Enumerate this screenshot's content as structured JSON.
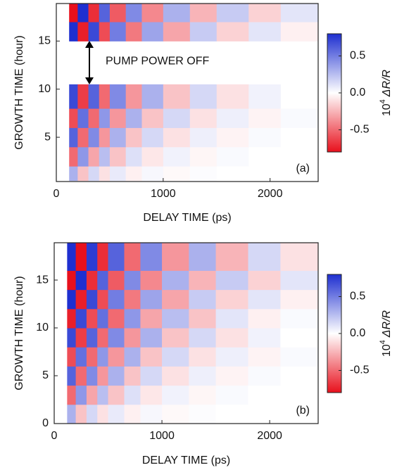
{
  "chart_data": [
    {
      "type": "heatmap",
      "xlabel": "DELAY TIME (ps)",
      "ylabel": "GROWTH TIME (hour)",
      "xlim": [
        0,
        2450
      ],
      "ylim": [
        0.4,
        18.9
      ],
      "xticks": [
        0,
        1000,
        2000
      ],
      "yticks": [
        5,
        10,
        15
      ],
      "x_edges": [
        120,
        200,
        300,
        400,
        500,
        650,
        800,
        1000,
        1250,
        1500,
        1800,
        2100,
        2450
      ],
      "y_edges": [
        0.5,
        2,
        4,
        6,
        8,
        10.5,
        15,
        17,
        18.9
      ],
      "z": [
        [
          0.3,
          -0.2,
          0.15,
          -0.1,
          0.08,
          -0.05,
          0.03,
          -0.02,
          0.01,
          0,
          0,
          0
        ],
        [
          -0.5,
          0.4,
          -0.3,
          0.25,
          -0.2,
          0.12,
          -0.08,
          0.05,
          -0.03,
          0.02,
          0,
          0
        ],
        [
          0.6,
          -0.5,
          0.45,
          -0.35,
          0.3,
          -0.2,
          0.15,
          -0.1,
          0.06,
          -0.04,
          0.02,
          0
        ],
        [
          -0.6,
          0.55,
          -0.5,
          0.4,
          -0.35,
          0.3,
          -0.2,
          0.15,
          -0.1,
          0.06,
          -0.04,
          0.02
        ],
        [
          0.7,
          -0.65,
          0.6,
          -0.5,
          0.45,
          -0.35,
          0.3,
          -0.2,
          0.15,
          -0.1,
          0.05,
          0
        ],
        [
          null,
          null,
          null,
          null,
          null,
          null,
          null,
          null,
          null,
          null,
          null,
          null
        ],
        [
          0.8,
          -0.75,
          0.7,
          -0.6,
          0.5,
          -0.45,
          0.35,
          -0.3,
          0.2,
          -0.15,
          0.1,
          -0.05
        ],
        [
          -0.8,
          0.8,
          -0.7,
          0.6,
          -0.55,
          0.45,
          -0.4,
          0.3,
          -0.25,
          0.2,
          -0.15,
          0.1
        ]
      ],
      "colormap": [
        "#e8101c",
        "#ffffff",
        "#1e2fd0"
      ],
      "clim": [
        -0.8,
        0.8
      ],
      "cticks": [
        0.5,
        {
          "value": 0,
          "label": "0.0"
        },
        -0.5
      ],
      "colorbar_label": {
        "base": "10",
        "exponent": "4",
        "quantity": "ΔR/R"
      },
      "annotation": "PUMP POWER OFF",
      "panel_label": "(a)"
    },
    {
      "type": "heatmap",
      "xlabel": "DELAY TIME (ps)",
      "ylabel": "GROWTH TIME (hour)",
      "xlim": [
        0,
        2450
      ],
      "ylim": [
        0,
        18.9
      ],
      "xticks": [
        0,
        1000,
        2000
      ],
      "yticks": [
        0,
        5,
        10,
        15
      ],
      "x_edges": [
        120,
        200,
        300,
        400,
        500,
        650,
        800,
        1000,
        1250,
        1500,
        1800,
        2100,
        2450
      ],
      "y_edges": [
        0,
        2,
        4,
        6,
        8,
        10,
        12,
        14,
        16,
        18.9
      ],
      "z": [
        [
          0.3,
          -0.2,
          0.15,
          -0.1,
          0.08,
          -0.05,
          0.03,
          -0.02,
          0.01,
          0,
          0,
          0
        ],
        [
          -0.5,
          0.4,
          -0.3,
          0.25,
          -0.2,
          0.12,
          -0.08,
          0.05,
          -0.03,
          0.02,
          0,
          0
        ],
        [
          0.6,
          -0.5,
          0.45,
          -0.35,
          0.3,
          -0.2,
          0.15,
          -0.1,
          0.06,
          -0.04,
          0.02,
          0
        ],
        [
          -0.6,
          0.55,
          -0.5,
          0.4,
          -0.35,
          0.3,
          -0.2,
          0.15,
          -0.1,
          0.06,
          -0.04,
          0.02
        ],
        [
          0.7,
          -0.65,
          0.6,
          -0.5,
          0.45,
          -0.35,
          0.3,
          -0.2,
          0.15,
          -0.1,
          0.05,
          0
        ],
        [
          -0.75,
          0.7,
          -0.6,
          0.55,
          -0.5,
          0.4,
          -0.3,
          0.25,
          -0.2,
          0.1,
          -0.05,
          0.02
        ],
        [
          0.8,
          -0.75,
          0.7,
          -0.6,
          0.5,
          -0.45,
          0.35,
          -0.3,
          0.2,
          -0.15,
          0.1,
          -0.05
        ],
        [
          -0.8,
          0.8,
          -0.7,
          0.6,
          -0.55,
          0.45,
          -0.4,
          0.3,
          -0.25,
          0.2,
          -0.15,
          0.1
        ],
        [
          0.8,
          -0.8,
          0.75,
          -0.7,
          0.6,
          -0.5,
          0.45,
          -0.35,
          0.3,
          -0.25,
          0.15,
          -0.1
        ]
      ],
      "colormap": [
        "#e8101c",
        "#ffffff",
        "#1e2fd0"
      ],
      "clim": [
        -0.8,
        0.8
      ],
      "cticks": [
        0.5,
        {
          "value": 0,
          "label": "0.0"
        },
        -0.5
      ],
      "colorbar_label": {
        "base": "10",
        "exponent": "4",
        "quantity": "ΔR/R"
      },
      "panel_label": "(b)"
    }
  ]
}
